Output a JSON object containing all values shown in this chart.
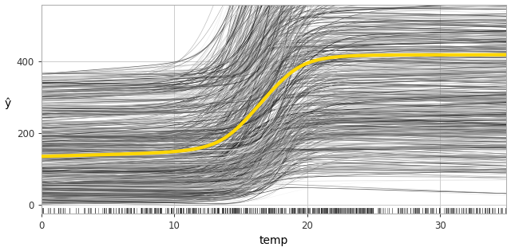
{
  "title": "",
  "xlabel": "temp",
  "ylabel": "ŷ",
  "xlim": [
    0,
    35
  ],
  "ylim": [
    -25,
    560
  ],
  "x_ticks": [
    0,
    10,
    20,
    30
  ],
  "y_ticks": [
    0,
    200,
    400
  ],
  "n_lines": 700,
  "x_start": 0,
  "x_end": 35,
  "n_points": 150,
  "gold_color": "#FFD700",
  "gold_linewidth": 3.0,
  "bg_color": "#ffffff",
  "grid_color": "#cccccc",
  "seed": 42
}
